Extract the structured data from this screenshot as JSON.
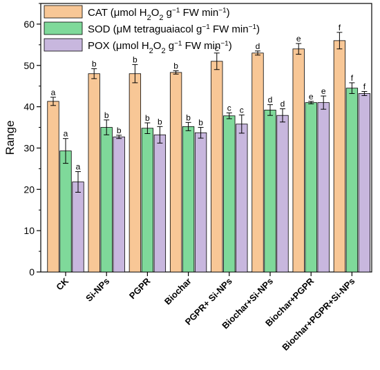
{
  "chart_data": {
    "type": "bar",
    "categories": [
      "CK",
      "Si-NPs",
      "PGPR",
      "Biochar",
      "PGPR+ Si-NPs",
      "Biochar+Si-NPs",
      "Biochar+PGPR",
      "Biochar+PGPR+Si-NPs"
    ],
    "ylabel": "Range",
    "xlabel": "",
    "ylim": [
      0,
      65
    ],
    "yticks": [
      0,
      10,
      20,
      30,
      40,
      50,
      60
    ],
    "legend_position": "top-left",
    "series": [
      {
        "key": "cat",
        "legend": {
          "pre": "CAT (μmol H",
          "sub": "2",
          "mid": "O",
          "sub2": "2",
          "post": " g",
          "sup": "−1",
          "post2": " FW min",
          "sup2": "−1",
          "end": ")"
        },
        "color": "#F8C796",
        "values": [
          41.3,
          48.0,
          48.0,
          48.3,
          51.0,
          53.0,
          54.0,
          56.0
        ],
        "errors": [
          1.0,
          1.2,
          2.2,
          0.4,
          2.0,
          0.5,
          1.3,
          2.0
        ],
        "letters": [
          "a",
          "b",
          "b",
          "b",
          "c",
          "d",
          "e",
          "f"
        ]
      },
      {
        "key": "sod",
        "legend": {
          "pre": "SOD (μM tetraguaiacol g",
          "sub": "",
          "mid": "",
          "sub2": "",
          "post": "",
          "sup": "−1",
          "post2": " FW min",
          "sup2": "−1",
          "end": ")"
        },
        "color": "#7FD99A",
        "values": [
          29.3,
          35.0,
          34.8,
          35.2,
          37.8,
          39.2,
          41.0,
          44.5
        ],
        "errors": [
          3.0,
          1.8,
          1.3,
          1.0,
          0.7,
          1.3,
          0.3,
          1.3
        ],
        "letters": [
          "a",
          "b",
          "b",
          "b",
          "c",
          "d",
          "e",
          "f"
        ]
      },
      {
        "key": "pox",
        "legend": {
          "pre": "POX (μmol H",
          "sub": "2",
          "mid": "O",
          "sub2": "2",
          "post": " g",
          "sup": "−1",
          "post2": " FW min",
          "sup2": "−1",
          "end": ")"
        },
        "color": "#C8B7DE",
        "values": [
          21.8,
          32.7,
          33.2,
          33.7,
          35.8,
          37.9,
          41.0,
          43.2
        ],
        "errors": [
          2.5,
          0.4,
          2.0,
          1.3,
          2.2,
          1.6,
          1.6,
          0.5
        ],
        "letters": [
          "a",
          "b",
          "b",
          "b",
          "c",
          "d",
          "e",
          "f"
        ]
      }
    ]
  }
}
